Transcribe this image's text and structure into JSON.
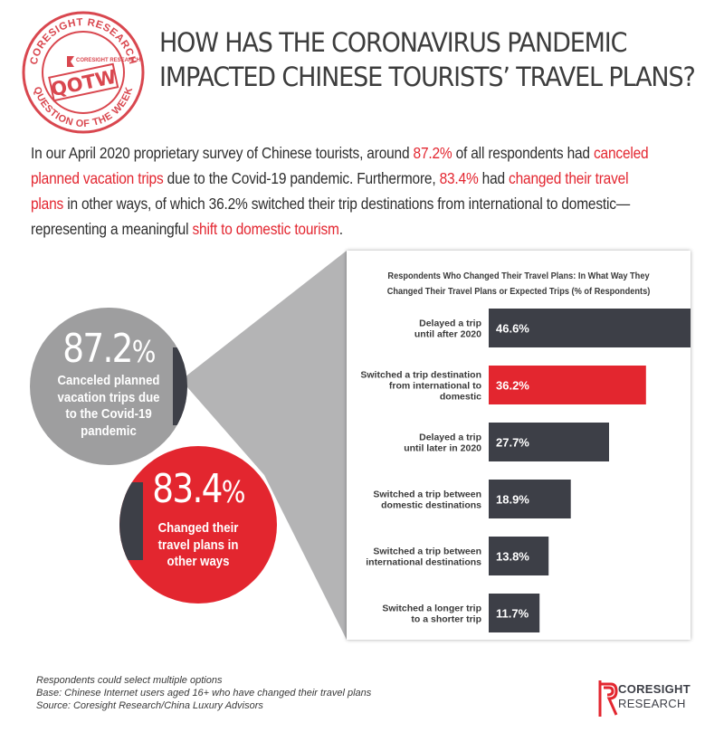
{
  "stamp": {
    "ring_top": "CORESIGHT RESEARCH",
    "ring_bottom": "QUESTION OF THE WEEK",
    "inner_brand": "CORESIGHT RESEARCH",
    "badge": "QOTW",
    "color": "#d9474f"
  },
  "title": {
    "line1": "HOW HAS THE CORONAVIRUS PANDEMIC",
    "line2": "IMPACTED CHINESE TOURISTS’ TRAVEL PLANS?"
  },
  "intro": {
    "t1": "In our April 2020 proprietary survey of Chinese tourists, around ",
    "h1": "87.2%",
    "t2": " of all respondents had ",
    "h2": "canceled planned vacation trips",
    "t3": " due to the Covid-19 pandemic. Furthermore, ",
    "h3": "83.4%",
    "t4": " had ",
    "h4": "changed their travel plans",
    "t5": " in other ways, of which 36.2% switched their trip destinations from international to domestic—representing a meaningful ",
    "h5": "shift to domestic tourism",
    "t6": "."
  },
  "stats": {
    "canceled": {
      "value": "87.2",
      "unit": "%",
      "label": [
        "Canceled planned",
        "vacation trips due",
        "to the Covid-19",
        "pandemic"
      ]
    },
    "changed": {
      "value": "83.4",
      "unit": "%",
      "label": [
        "Changed their",
        "travel plans in",
        "other ways"
      ]
    }
  },
  "chart_data": {
    "type": "bar",
    "orientation": "horizontal",
    "title": "Respondents Who Changed Their Travel Plans: In What Way They Changed Their Travel Plans or Expected Trips (% of Respondents)",
    "title_lines": [
      "Respondents Who Changed Their Travel Plans: In What Way They",
      "Changed Their Travel Plans or Expected Trips (% of Respondents)"
    ],
    "categories": [
      [
        "Delayed a trip",
        "until after 2020"
      ],
      [
        "Switched a trip destination",
        "from international to",
        "domestic"
      ],
      [
        "Delayed a trip",
        "until later in 2020"
      ],
      [
        "Switched a trip between",
        "domestic destinations"
      ],
      [
        "Switched a trip between",
        "international destinations"
      ],
      [
        "Switched a longer trip",
        "to a shorter trip"
      ]
    ],
    "values": [
      46.6,
      36.2,
      27.7,
      18.9,
      13.8,
      11.7
    ],
    "value_labels": [
      "46.6%",
      "36.2%",
      "27.7%",
      "18.9%",
      "13.8%",
      "11.7%"
    ],
    "highlight_index": 1,
    "bar_color": "#3d3f47",
    "highlight_color": "#e3262f",
    "xlim": [
      0,
      50
    ],
    "grid": false
  },
  "footnotes": [
    "Respondents could select multiple options",
    "Base: Chinese Internet users aged 16+ who have changed their travel plans",
    "Source: Coresight Research/China Luxury Advisors"
  ],
  "logo": {
    "line1": "CORESIGHT",
    "line2": "RESEARCH",
    "color": "#e3262f"
  },
  "colors": {
    "accent_red": "#e3262f",
    "dark_gray": "#3d3f47",
    "mid_gray": "#9e9e9f",
    "funnel_gray": "#b4b4b5"
  }
}
